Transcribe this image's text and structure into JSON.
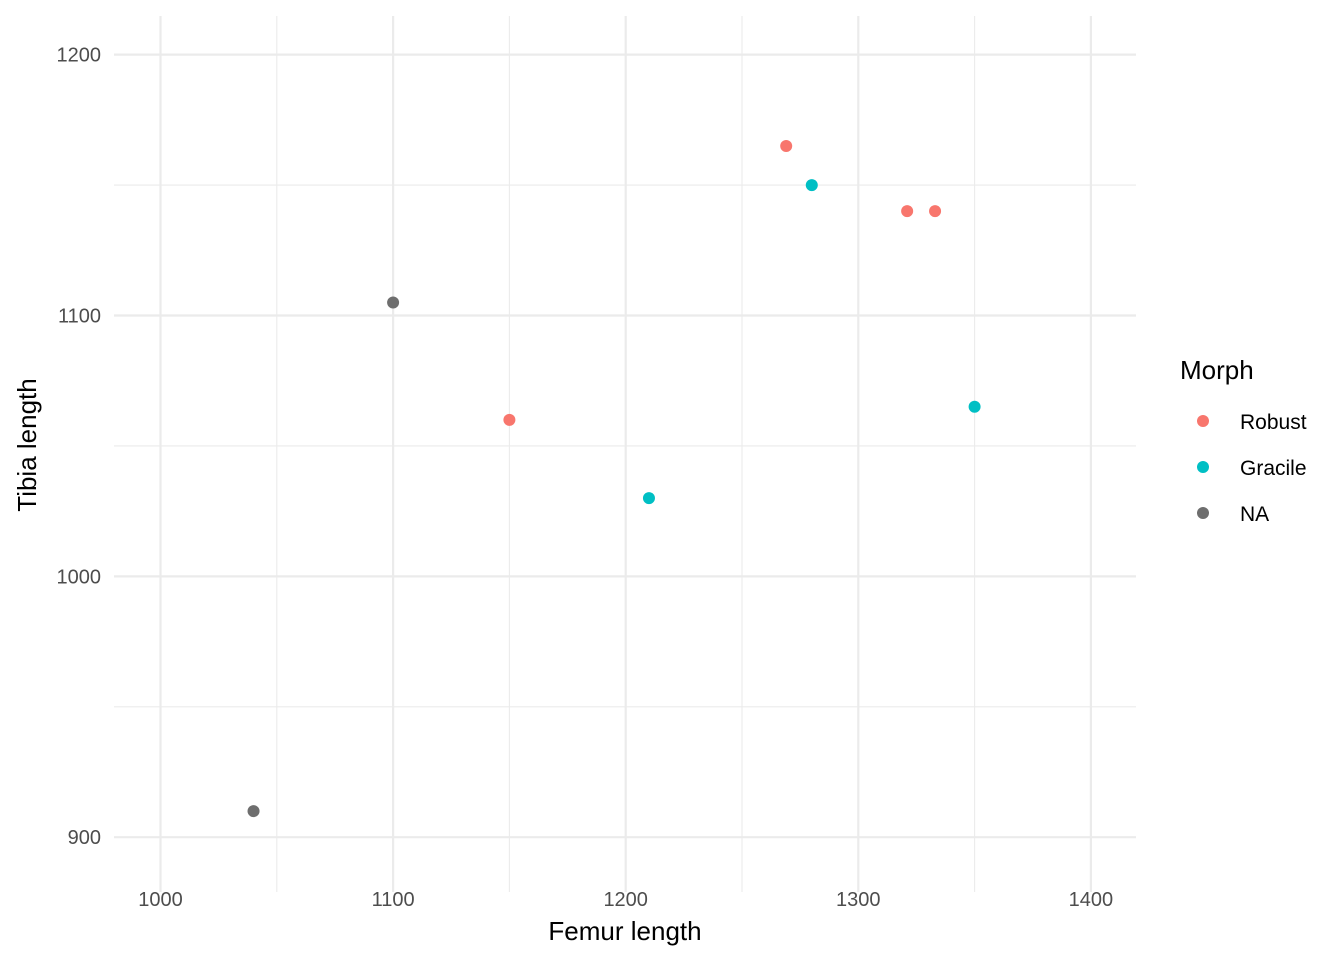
{
  "chart_data": {
    "type": "scatter",
    "xlabel": "Femur length",
    "ylabel": "Tibia length",
    "xlim": [
      980,
      1420
    ],
    "ylim": [
      885,
      1218
    ],
    "x_ticks": [
      1000,
      1100,
      1200,
      1300,
      1400
    ],
    "y_ticks": [
      900,
      1000,
      1100,
      1200
    ],
    "grid": true,
    "legend": {
      "title": "Morph",
      "placement": "right",
      "entries": [
        {
          "name": "Robust",
          "color": "#F8766D"
        },
        {
          "name": "Gracile",
          "color": "#00BFC4"
        },
        {
          "name": "NA",
          "color": "#6E6E6E"
        }
      ]
    },
    "series": [
      {
        "name": "Robust",
        "color": "#F8766D",
        "points": [
          [
            1150,
            1060
          ],
          [
            1269,
            1165
          ],
          [
            1321,
            1140
          ],
          [
            1333,
            1140
          ]
        ]
      },
      {
        "name": "Gracile",
        "color": "#00BFC4",
        "points": [
          [
            1210,
            1030
          ],
          [
            1280,
            1150
          ],
          [
            1350,
            1065
          ]
        ]
      },
      {
        "name": "NA",
        "color": "#6E6E6E",
        "points": [
          [
            1040,
            910
          ],
          [
            1100,
            1105
          ]
        ]
      }
    ]
  }
}
